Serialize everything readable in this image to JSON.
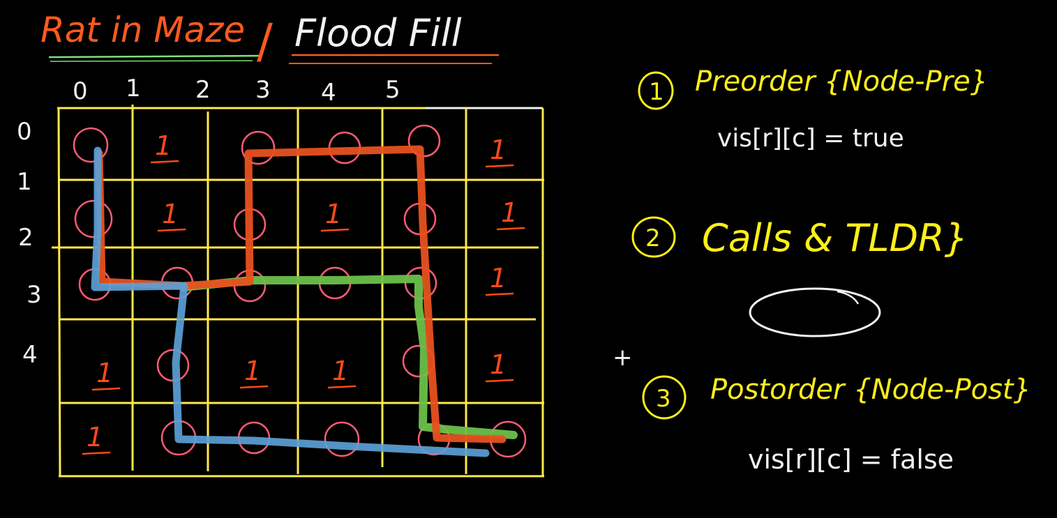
{
  "title": {
    "left": "Rat in Maze",
    "slash": "/",
    "right": "Flood Fill"
  },
  "colors": {
    "background": "#000000",
    "grid": "#ffe94a",
    "circle": "#ff5c74",
    "one": "#ff4a1a",
    "path_orange": "#e8511f",
    "path_green": "#6cc04a",
    "path_blue": "#5b9fd6",
    "notes": "#ffef1a"
  },
  "grid": {
    "col_indices": [
      "0",
      "1",
      "2",
      "3",
      "4",
      "5"
    ],
    "row_indices": [
      "0",
      "1",
      "2",
      "3",
      "4"
    ],
    "cells": [
      [
        "circle",
        "1",
        "",
        "circle",
        "circle",
        "circle",
        "1"
      ],
      [
        "circle",
        "1",
        "",
        "circle",
        "1",
        "circle",
        "1"
      ],
      [
        "circle",
        "circle",
        "",
        "circle",
        "circle",
        "circle",
        "1"
      ],
      [
        "1",
        "circle",
        "",
        "1",
        "1",
        "circle",
        "1"
      ],
      [
        "1",
        "circle",
        "",
        "circle",
        "circle",
        "circle",
        "circle"
      ]
    ]
  },
  "notes": {
    "step1": {
      "number": "1",
      "text": "Preorder {Node-Pre}",
      "code": "vis[r][c] = true"
    },
    "step2": {
      "number": "2",
      "text": "Calls & TLDR}"
    },
    "step3": {
      "number": "3",
      "text": "Postorder {Node-Post}",
      "code": "vis[r][c] = false"
    },
    "cursor_glyph": "+"
  }
}
